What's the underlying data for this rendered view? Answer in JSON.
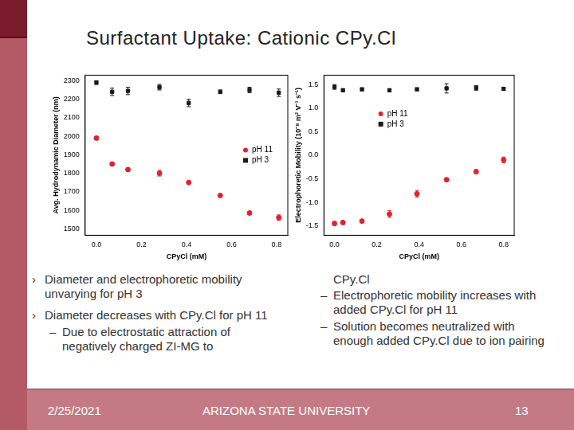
{
  "slide": {
    "title": "Surfactant Uptake: Cationic CPy.Cl",
    "left_items": [
      {
        "bullet": "›",
        "text": "Diameter and electrophoretic mobility unvarying for pH 3"
      },
      {
        "bullet": "›",
        "text": "Diameter decreases with CPy.Cl for pH 11",
        "sub": [
          {
            "bullet": "–",
            "text": "Due to electrostatic attraction of negatively charged ZI-MG to"
          }
        ]
      }
    ],
    "right_continuation": "CPy.Cl",
    "right_items": [
      {
        "bullet": "–",
        "text": "Electrophoretic mobility increases with added CPy.Cl for pH 11"
      },
      {
        "bullet": "–",
        "text": "Solution becomes neutralized with enough added CPy.Cl due to ion pairing"
      }
    ],
    "footer": {
      "date": "2/25/2021",
      "organization": "ARIZONA STATE UNIVERSITY",
      "page": "13"
    }
  },
  "chart_data": [
    {
      "type": "scatter",
      "x_label": "CPyCl (mM)",
      "y_label": "Avg. Hydrodynamic Diameter (nm)",
      "x": [
        0,
        0.07,
        0.14,
        0.28,
        0.41,
        0.55,
        0.68,
        0.81
      ],
      "xlim": [
        -0.05,
        0.85
      ],
      "xticks": [
        {
          "value": 0,
          "label": "0.0"
        },
        0.2,
        0.4,
        0.6,
        0.8
      ],
      "ylim": [
        1465,
        2330
      ],
      "yticks": [
        1500,
        1600,
        1700,
        1800,
        1900,
        2000,
        2100,
        2200,
        2300
      ],
      "grid": false,
      "legend": "right",
      "series": [
        {
          "name": "pH 11",
          "color": "#e3222b",
          "marker": "circle",
          "values": [
            1990,
            1850,
            1820,
            1800,
            1750,
            1680,
            1585,
            1560
          ],
          "errors": [
            8,
            8,
            8,
            15,
            8,
            8,
            8,
            15
          ]
        },
        {
          "name": "pH 3",
          "color": "#1a1a1a",
          "marker": "square",
          "values": [
            2290,
            2240,
            2245,
            2265,
            2180,
            2240,
            2250,
            2235
          ],
          "errors": [
            10,
            20,
            20,
            15,
            20,
            10,
            15,
            20
          ]
        }
      ]
    },
    {
      "type": "scatter",
      "x_label": "CPyCl (mM)",
      "y_label": "Electrophoretic Mobility (10⁻⁸ m² V⁻¹ s⁻¹)",
      "x": [
        0,
        0.04,
        0.13,
        0.26,
        0.39,
        0.53,
        0.67,
        0.8
      ],
      "xlim": [
        -0.05,
        0.85
      ],
      "xticks": [
        {
          "value": 0,
          "label": "0.0"
        },
        0.2,
        0.4,
        0.6,
        0.8
      ],
      "ylim": [
        -1.7,
        1.7
      ],
      "yticks": [
        -1.5,
        {
          "value": -1,
          "label": "-1.0"
        },
        -0.5,
        {
          "value": 0,
          "label": "0.0"
        },
        0.5,
        {
          "value": 1,
          "label": "1.0"
        },
        1.5
      ],
      "grid": false,
      "legend": "top",
      "series": [
        {
          "name": "pH 11",
          "color": "#e3222b",
          "marker": "circle",
          "values": [
            -1.45,
            -1.43,
            -1.4,
            -1.25,
            -0.82,
            -0.52,
            -0.35,
            -0.1
          ],
          "errors": [
            0.04,
            0.03,
            0.03,
            0.07,
            0.07,
            0.03,
            0.04,
            0.06
          ]
        },
        {
          "name": "pH 3",
          "color": "#1a1a1a",
          "marker": "square",
          "values": [
            1.45,
            1.38,
            1.4,
            1.38,
            1.4,
            1.42,
            1.43,
            1.41
          ],
          "errors": [
            0.05,
            0.03,
            0.03,
            0.03,
            0.03,
            0.1,
            0.05,
            0.03
          ]
        }
      ]
    }
  ]
}
